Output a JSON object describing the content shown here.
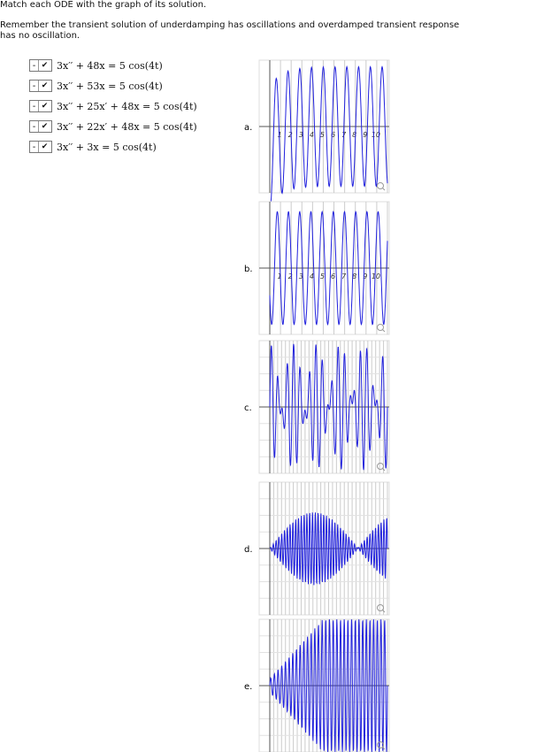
{
  "header": {
    "title": "Match each ODE with the graph of its solution.",
    "instructions": "Remember the transient solution of underdamping has oscillations and overdamped transient response has no oscillation."
  },
  "rows": [
    {
      "select": "-",
      "equation": "3x′′ + 48x = 5 cos(4t)"
    },
    {
      "select": "-",
      "equation": "3x′′ + 53x = 5 cos(4t)"
    },
    {
      "select": "-",
      "equation": "3x′′ + 25x′ + 48x = 5 cos(4t)"
    },
    {
      "select": "-",
      "equation": "3x′′ + 22x′ + 48x = 5 cos(4t)"
    },
    {
      "select": "-",
      "equation": "3x′′ + 3x = 5 cos(4t)"
    }
  ],
  "graphs": [
    {
      "label": "a.",
      "ticks": [
        "1",
        "2",
        "3",
        "4",
        "5",
        "6",
        "7",
        "8",
        "9",
        "10"
      ]
    },
    {
      "label": "b.",
      "ticks": [
        "1",
        "2",
        "3",
        "4",
        "5",
        "6",
        "7",
        "8",
        "9",
        "10"
      ]
    },
    {
      "label": "c."
    },
    {
      "label": "d."
    },
    {
      "label": "e."
    }
  ]
}
